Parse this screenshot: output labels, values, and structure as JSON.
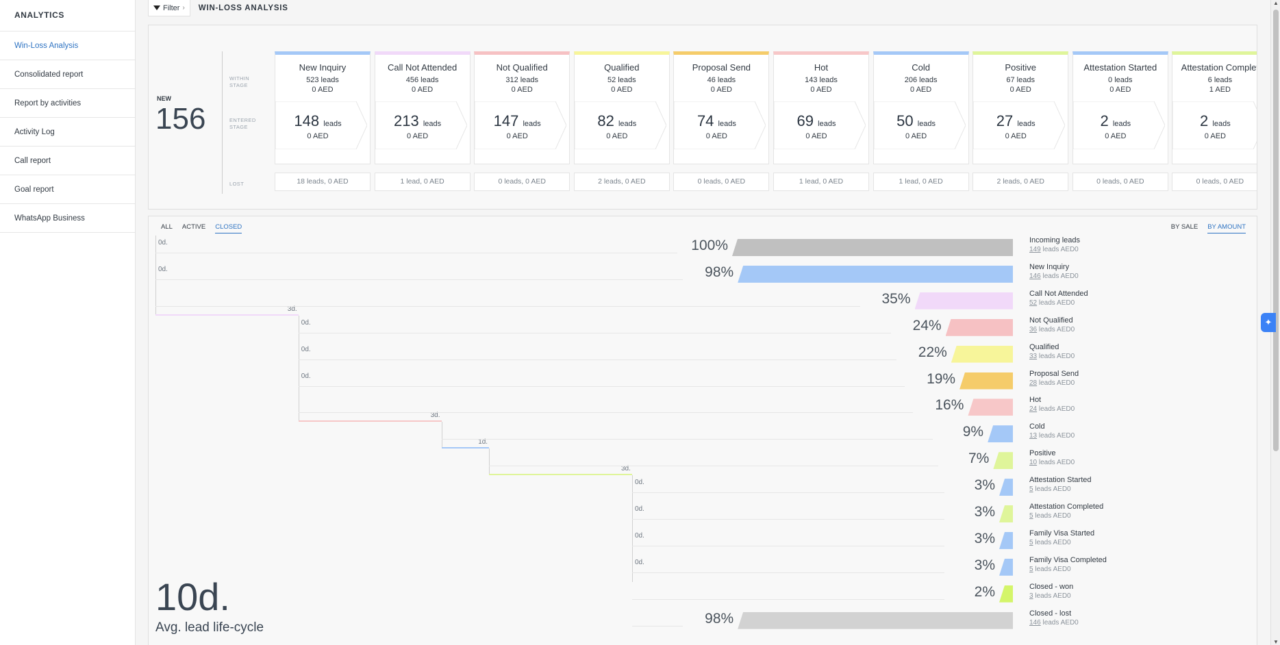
{
  "sidebar": {
    "title": "ANALYTICS",
    "items": [
      "Win-Loss Analysis",
      "Consolidated report",
      "Report by activities",
      "Activity Log",
      "Call report",
      "Goal report",
      "WhatsApp Business"
    ]
  },
  "toolbar": {
    "filter_label": "Filter",
    "filter_chevron": "›",
    "page_title": "WIN-LOSS ANALYSIS"
  },
  "pipeline": {
    "new_label": "NEW",
    "new_count": "156",
    "row_labels": {
      "within": "WITHIN STAGE",
      "entered": "ENTERED STAGE",
      "lost": "LOST"
    },
    "stages": [
      {
        "name": "New Inquiry",
        "color": "#a4c8f7",
        "within_leads": "523 leads",
        "within_amount": "0 AED",
        "entered_count": "148",
        "entered_unit": "leads",
        "entered_amount": "0 AED",
        "lost": "18 leads, 0 AED"
      },
      {
        "name": "Call Not Attended",
        "color": "#f1d9f9",
        "within_leads": "456 leads",
        "within_amount": "0 AED",
        "entered_count": "213",
        "entered_unit": "leads",
        "entered_amount": "0 AED",
        "lost": "1 lead, 0 AED"
      },
      {
        "name": "Not Qualified",
        "color": "#f6c1c3",
        "within_leads": "312 leads",
        "within_amount": "0 AED",
        "entered_count": "147",
        "entered_unit": "leads",
        "entered_amount": "0 AED",
        "lost": "0 leads, 0 AED"
      },
      {
        "name": "Qualified",
        "color": "#f7f59a",
        "within_leads": "52 leads",
        "within_amount": "0 AED",
        "entered_count": "82",
        "entered_unit": "leads",
        "entered_amount": "0 AED",
        "lost": "2 leads, 0 AED"
      },
      {
        "name": "Proposal Send",
        "color": "#f5cc6a",
        "within_leads": "46 leads",
        "within_amount": "0 AED",
        "entered_count": "74",
        "entered_unit": "leads",
        "entered_amount": "0 AED",
        "lost": "0 leads, 0 AED"
      },
      {
        "name": "Hot",
        "color": "#f7c7c8",
        "within_leads": "143 leads",
        "within_amount": "0 AED",
        "entered_count": "69",
        "entered_unit": "leads",
        "entered_amount": "0 AED",
        "lost": "1 lead, 0 AED"
      },
      {
        "name": "Cold",
        "color": "#a4c8f7",
        "within_leads": "206 leads",
        "within_amount": "0 AED",
        "entered_count": "50",
        "entered_unit": "leads",
        "entered_amount": "0 AED",
        "lost": "1 lead, 0 AED"
      },
      {
        "name": "Positive",
        "color": "#dff59a",
        "within_leads": "67 leads",
        "within_amount": "0 AED",
        "entered_count": "27",
        "entered_unit": "leads",
        "entered_amount": "0 AED",
        "lost": "2 leads, 0 AED"
      },
      {
        "name": "Attestation Started",
        "color": "#a4c8f7",
        "within_leads": "0 leads",
        "within_amount": "0 AED",
        "entered_count": "2",
        "entered_unit": "leads",
        "entered_amount": "0 AED",
        "lost": "0 leads, 0 AED"
      },
      {
        "name": "Attestation Complet",
        "color": "#dff59a",
        "within_leads": "6 leads",
        "within_amount": "1 AED",
        "entered_count": "2",
        "entered_unit": "leads",
        "entered_amount": "0 AED",
        "lost": "0 leads, 0 AED"
      }
    ]
  },
  "funnel": {
    "tabs_left": [
      "ALL",
      "ACTIVE",
      "CLOSED"
    ],
    "tabs_left_active": "CLOSED",
    "tabs_right": [
      "BY SALE",
      "BY AMOUNT"
    ],
    "tabs_right_active": "BY AMOUNT",
    "rows": [
      {
        "name": "Incoming leads",
        "count": "149",
        "suffix": " leads AED0",
        "pct": "100%",
        "pct_value": 100,
        "day": "0d.",
        "day_start": 0,
        "day_len": 0,
        "color": "#c0c0c0"
      },
      {
        "name": "New Inquiry",
        "count": "146",
        "suffix": " leads AED0",
        "pct": "98%",
        "pct_value": 98,
        "day": "0d.",
        "day_start": 0,
        "day_len": 0,
        "color": "#a4c8f7"
      },
      {
        "name": "Call Not Attended",
        "count": "52",
        "suffix": " leads AED0",
        "pct": "35%",
        "pct_value": 35,
        "day": "3d.",
        "day_start": 0,
        "day_len": 3,
        "color": "#f1d9f9"
      },
      {
        "name": "Not Qualified",
        "count": "36",
        "suffix": " leads AED0",
        "pct": "24%",
        "pct_value": 24,
        "day": "0d.",
        "day_start": 3,
        "day_len": 0,
        "color": "#f6c1c3"
      },
      {
        "name": "Qualified",
        "count": "33",
        "suffix": " leads AED0",
        "pct": "22%",
        "pct_value": 22,
        "day": "0d.",
        "day_start": 3,
        "day_len": 0,
        "color": "#f7f59a"
      },
      {
        "name": "Proposal Send",
        "count": "28",
        "suffix": " leads AED0",
        "pct": "19%",
        "pct_value": 19,
        "day": "0d.",
        "day_start": 3,
        "day_len": 0,
        "color": "#f5cc6a"
      },
      {
        "name": "Hot",
        "count": "24",
        "suffix": " leads AED0",
        "pct": "16%",
        "pct_value": 16,
        "day": "3d.",
        "day_start": 3,
        "day_len": 3,
        "color": "#f7c7c8"
      },
      {
        "name": "Cold",
        "count": "13",
        "suffix": " leads AED0",
        "pct": "9%",
        "pct_value": 9,
        "day": "1d.",
        "day_start": 6,
        "day_len": 1,
        "color": "#a4c8f7"
      },
      {
        "name": "Positive",
        "count": "10",
        "suffix": " leads AED0",
        "pct": "7%",
        "pct_value": 7,
        "day": "3d.",
        "day_start": 7,
        "day_len": 3,
        "color": "#dff59a"
      },
      {
        "name": "Attestation Started",
        "count": "5",
        "suffix": " leads AED0",
        "pct": "3%",
        "pct_value": 3,
        "day": "0d.",
        "day_start": 10,
        "day_len": 0,
        "color": "#a4c8f7"
      },
      {
        "name": "Attestation Completed",
        "count": "5",
        "suffix": " leads AED0",
        "pct": "3%",
        "pct_value": 3,
        "day": "0d.",
        "day_start": 10,
        "day_len": 0,
        "color": "#dff59a"
      },
      {
        "name": "Family Visa Started",
        "count": "5",
        "suffix": " leads AED0",
        "pct": "3%",
        "pct_value": 3,
        "day": "0d.",
        "day_start": 10,
        "day_len": 0,
        "color": "#a4c8f7"
      },
      {
        "name": "Family Visa Completed",
        "count": "5",
        "suffix": " leads AED0",
        "pct": "3%",
        "pct_value": 3,
        "day": "0d.",
        "day_start": 10,
        "day_len": 0,
        "color": "#a4c8f7"
      },
      {
        "name": "Closed - won",
        "count": "3",
        "suffix": " leads AED0",
        "pct": "2%",
        "pct_value": 2,
        "day": "",
        "day_start": 10,
        "day_len": 0,
        "color": "#d4f56a"
      },
      {
        "name": "Closed - lost",
        "count": "146",
        "suffix": " leads AED0",
        "pct": "98%",
        "pct_value": 98,
        "day": "",
        "day_start": 10,
        "day_len": 0,
        "color": "#d2d2d2"
      }
    ],
    "avg_value": "10d.",
    "avg_label": "Avg. lead life-cycle"
  }
}
